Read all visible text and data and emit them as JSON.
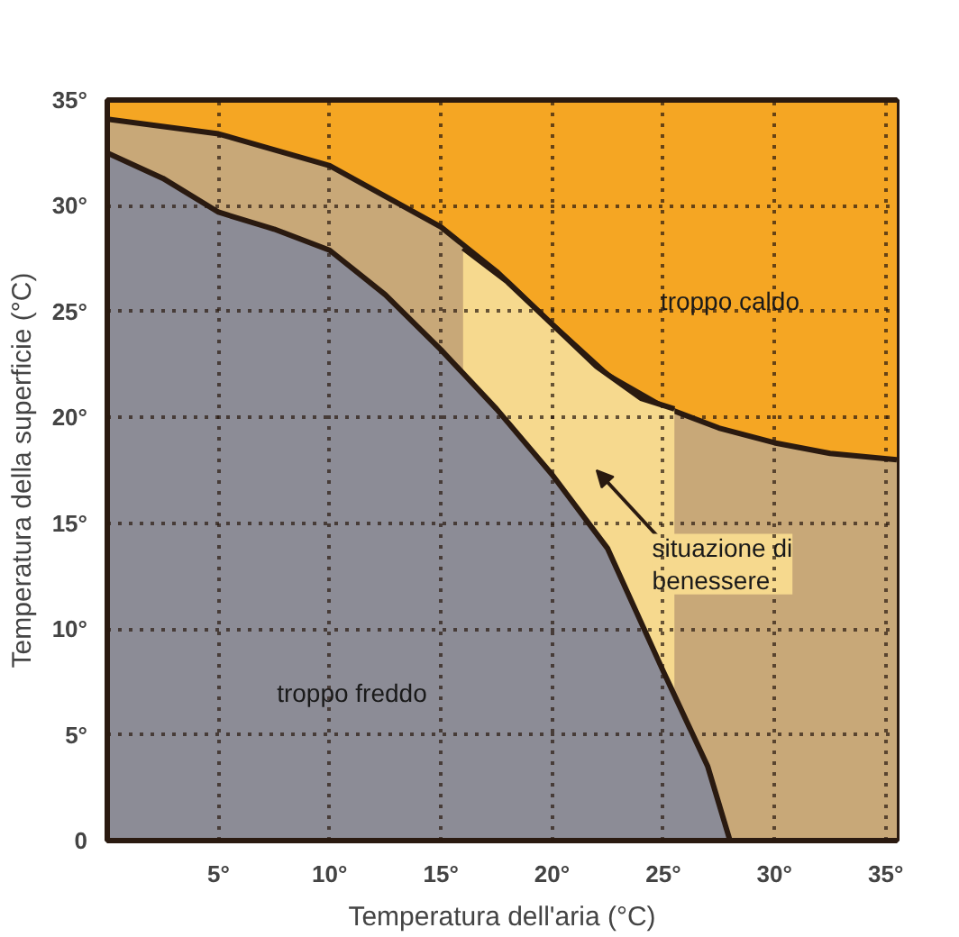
{
  "chart_data": {
    "type": "area",
    "xlabel": "Temperatura dell'aria (°C)",
    "ylabel": "Temperatura della superficie (°C)",
    "xlim": [
      0,
      35.5
    ],
    "ylim": [
      0,
      35
    ],
    "xticks": [
      {
        "value": 5,
        "label": "5°"
      },
      {
        "value": 10,
        "label": "10°"
      },
      {
        "value": 15,
        "label": "15°"
      },
      {
        "value": 20,
        "label": "20°"
      },
      {
        "value": 25,
        "label": "25°"
      },
      {
        "value": 30,
        "label": "30°"
      },
      {
        "value": 35,
        "label": "35°"
      }
    ],
    "yticks": [
      {
        "value": 0,
        "label": "0"
      },
      {
        "value": 5,
        "label": "5°"
      },
      {
        "value": 10,
        "label": "10°"
      },
      {
        "value": 15,
        "label": "15°"
      },
      {
        "value": 20,
        "label": "20°"
      },
      {
        "value": 25,
        "label": "25°"
      },
      {
        "value": 30,
        "label": "30°"
      },
      {
        "value": 35,
        "label": "35°"
      }
    ],
    "grid": true,
    "series": [
      {
        "color": "#f5a623",
        "x": [
          0,
          35.5
        ],
        "values": [
          35,
          35
        ]
      },
      {
        "color": "#c8a878",
        "x": [
          0,
          5,
          10,
          15,
          17.5,
          20,
          22.5,
          25,
          27.5,
          30,
          32.5,
          35.5
        ],
        "values": [
          34.1,
          33.4,
          31.9,
          29.0,
          26.9,
          24.4,
          22.0,
          20.5,
          19.5,
          18.8,
          18.3,
          18.0
        ]
      },
      {
        "color": "#f6d98e",
        "x": [
          16,
          18,
          20,
          22,
          24,
          25.5
        ],
        "values": [
          28.0,
          26.4,
          24.4,
          22.4,
          20.9,
          20.4
        ]
      },
      {
        "color": "#8c8c96",
        "x": [
          0,
          2.5,
          5,
          7.5,
          10,
          12.5,
          15,
          17.5,
          20,
          22.5,
          25,
          27,
          28
        ],
        "values": [
          32.5,
          31.3,
          29.7,
          28.9,
          27.9,
          25.8,
          23.2,
          20.4,
          17.3,
          13.8,
          8.0,
          3.5,
          0
        ]
      }
    ],
    "annotations": [
      "troppo caldo",
      "troppo freddo",
      "situazione di\nbenessere"
    ]
  }
}
